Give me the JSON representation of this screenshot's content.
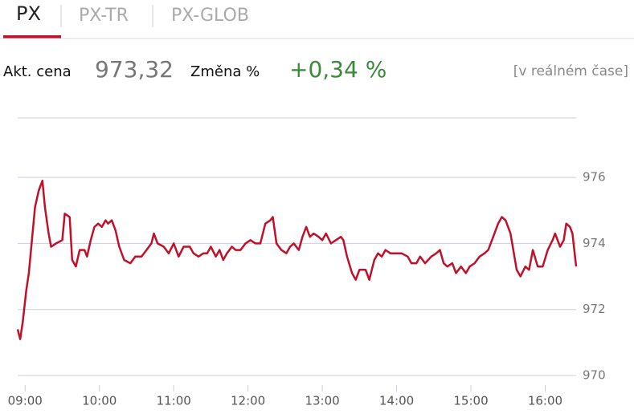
{
  "tabs": [
    "PX",
    "PX-TR",
    "PX-GLOB"
  ],
  "quote": {
    "price_label": "Akt. cena",
    "price": "973,32",
    "change_label": "Změna %",
    "change": "+0,34 %",
    "status": "[v reálném čase]"
  },
  "chart_data": {
    "type": "line",
    "color": "#c0102a",
    "grid": true,
    "xlim": [
      534,
      985
    ],
    "ylim": [
      970,
      977.8
    ],
    "yticks": [
      970,
      972,
      974,
      976
    ],
    "xticks": [
      {
        "value": 540,
        "label": "09:00"
      },
      {
        "value": 600,
        "label": "10:00"
      },
      {
        "value": 660,
        "label": "11:00"
      },
      {
        "value": 720,
        "label": "12:00"
      },
      {
        "value": 780,
        "label": "13:00"
      },
      {
        "value": 840,
        "label": "14:00"
      },
      {
        "value": 900,
        "label": "15:00"
      },
      {
        "value": 960,
        "label": "16:00"
      }
    ],
    "x": [
      534,
      536,
      538,
      541,
      543,
      546,
      548,
      551,
      554,
      556,
      559,
      561,
      565,
      570,
      572,
      576,
      578,
      581,
      584,
      588,
      590,
      593,
      596,
      599,
      602,
      605,
      607,
      610,
      613,
      616,
      620,
      625,
      629,
      634,
      638,
      642,
      644,
      647,
      652,
      656,
      660,
      664,
      668,
      673,
      676,
      680,
      684,
      687,
      690,
      694,
      697,
      700,
      703,
      707,
      710,
      714,
      718,
      722,
      726,
      730,
      734,
      738,
      740,
      743,
      747,
      751,
      754,
      757,
      761,
      764,
      767,
      770,
      773,
      777,
      780,
      783,
      787,
      791,
      795,
      797,
      800,
      804,
      807,
      810,
      815,
      818,
      822,
      825,
      828,
      831,
      835,
      839,
      844,
      849,
      852,
      856,
      859,
      863,
      868,
      872,
      875,
      878,
      881,
      885,
      888,
      892,
      896,
      899,
      903,
      907,
      911,
      914,
      918,
      922,
      925,
      928,
      932,
      937,
      940,
      944,
      947,
      950,
      954,
      958,
      962,
      966,
      968,
      972,
      975,
      977,
      980,
      982,
      985
    ],
    "values": [
      971.4,
      971.1,
      971.6,
      972.6,
      973.1,
      974.3,
      975.1,
      975.6,
      975.9,
      975.1,
      974.3,
      973.9,
      974.0,
      974.1,
      974.9,
      974.8,
      973.5,
      973.3,
      973.8,
      973.8,
      973.6,
      974.1,
      974.5,
      974.6,
      974.5,
      974.7,
      974.6,
      974.7,
      974.4,
      973.9,
      973.5,
      973.4,
      973.6,
      973.6,
      973.8,
      974.0,
      974.3,
      974.0,
      973.9,
      973.7,
      974.0,
      973.6,
      973.9,
      973.9,
      973.7,
      973.6,
      973.7,
      973.7,
      973.9,
      973.6,
      973.8,
      973.5,
      973.7,
      973.9,
      973.8,
      973.8,
      974.0,
      974.1,
      974.0,
      974.0,
      974.6,
      974.7,
      974.8,
      974.0,
      973.8,
      973.7,
      973.9,
      974.0,
      973.8,
      974.2,
      974.5,
      974.2,
      974.3,
      974.2,
      974.1,
      974.3,
      974.0,
      974.1,
      974.2,
      974.1,
      973.6,
      973.1,
      972.9,
      973.2,
      973.2,
      972.9,
      973.5,
      973.7,
      973.6,
      973.8,
      973.7,
      973.7,
      973.7,
      973.6,
      973.4,
      973.4,
      973.6,
      973.4,
      973.6,
      973.7,
      973.8,
      973.4,
      973.3,
      973.4,
      973.1,
      973.3,
      973.1,
      973.3,
      973.4,
      973.6,
      973.7,
      973.8,
      974.2,
      974.6,
      974.8,
      974.7,
      974.3,
      973.2,
      973.0,
      973.3,
      973.2,
      973.8,
      973.3,
      973.3,
      973.8,
      974.1,
      974.3,
      973.9,
      974.1,
      974.6,
      974.5,
      974.3,
      973.3
    ]
  }
}
